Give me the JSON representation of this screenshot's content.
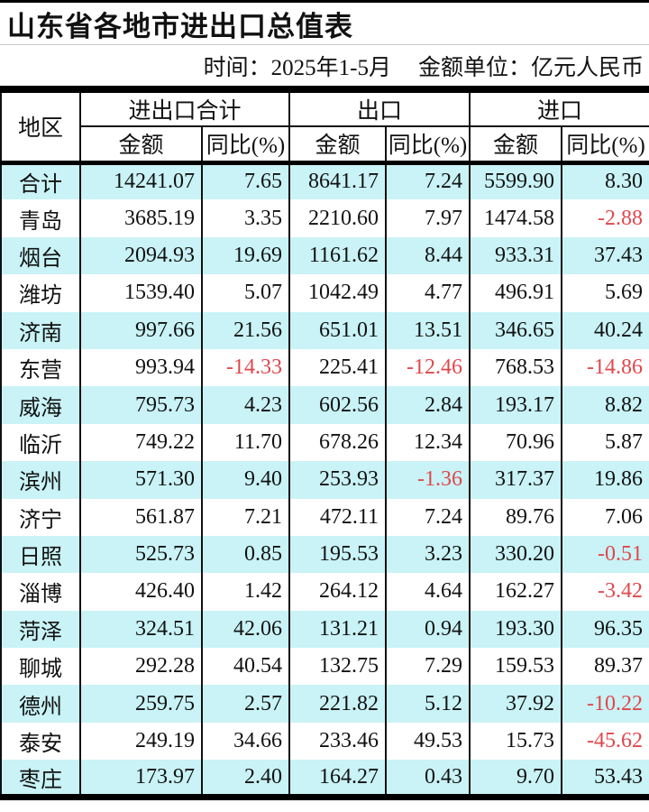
{
  "chart_data": {
    "type": "table",
    "title": "山东省各地市进出口总值表",
    "subtitle_time": "时间：2025年1-5月",
    "subtitle_unit": "金额单位：亿元人民币",
    "region_header": "地区",
    "column_groups": [
      "进出口合计",
      "出口",
      "进口"
    ],
    "sub_headers": [
      "金额",
      "同比(%)"
    ],
    "rows": [
      {
        "region": "合计",
        "values": [
          "14241.07",
          "7.65",
          "8641.17",
          "7.24",
          "5599.90",
          "8.30"
        ]
      },
      {
        "region": "青岛",
        "values": [
          "3685.19",
          "3.35",
          "2210.60",
          "7.97",
          "1474.58",
          "-2.88"
        ]
      },
      {
        "region": "烟台",
        "values": [
          "2094.93",
          "19.69",
          "1161.62",
          "8.44",
          "933.31",
          "37.43"
        ]
      },
      {
        "region": "潍坊",
        "values": [
          "1539.40",
          "5.07",
          "1042.49",
          "4.77",
          "496.91",
          "5.69"
        ]
      },
      {
        "region": "济南",
        "values": [
          "997.66",
          "21.56",
          "651.01",
          "13.51",
          "346.65",
          "40.24"
        ]
      },
      {
        "region": "东营",
        "values": [
          "993.94",
          "-14.33",
          "225.41",
          "-12.46",
          "768.53",
          "-14.86"
        ]
      },
      {
        "region": "威海",
        "values": [
          "795.73",
          "4.23",
          "602.56",
          "2.84",
          "193.17",
          "8.82"
        ]
      },
      {
        "region": "临沂",
        "values": [
          "749.22",
          "11.70",
          "678.26",
          "12.34",
          "70.96",
          "5.87"
        ]
      },
      {
        "region": "滨州",
        "values": [
          "571.30",
          "9.40",
          "253.93",
          "-1.36",
          "317.37",
          "19.86"
        ]
      },
      {
        "region": "济宁",
        "values": [
          "561.87",
          "7.21",
          "472.11",
          "7.24",
          "89.76",
          "7.06"
        ]
      },
      {
        "region": "日照",
        "values": [
          "525.73",
          "0.85",
          "195.53",
          "3.23",
          "330.20",
          "-0.51"
        ]
      },
      {
        "region": "淄博",
        "values": [
          "426.40",
          "1.42",
          "264.12",
          "4.64",
          "162.27",
          "-3.42"
        ]
      },
      {
        "region": "菏泽",
        "values": [
          "324.51",
          "42.06",
          "131.21",
          "0.94",
          "193.30",
          "96.35"
        ]
      },
      {
        "region": "聊城",
        "values": [
          "292.28",
          "40.54",
          "132.75",
          "7.29",
          "159.53",
          "89.37"
        ]
      },
      {
        "region": "德州",
        "values": [
          "259.75",
          "2.57",
          "221.82",
          "5.12",
          "37.92",
          "-10.22"
        ]
      },
      {
        "region": "泰安",
        "values": [
          "249.19",
          "34.66",
          "233.46",
          "49.53",
          "15.73",
          "-45.62"
        ]
      },
      {
        "region": "枣庄",
        "values": [
          "173.97",
          "2.40",
          "164.27",
          "0.43",
          "9.70",
          "53.43"
        ]
      }
    ]
  },
  "colors": {
    "row_highlight": "#c9f3f6",
    "negative_value": "#e0474c",
    "border": "#111111"
  }
}
